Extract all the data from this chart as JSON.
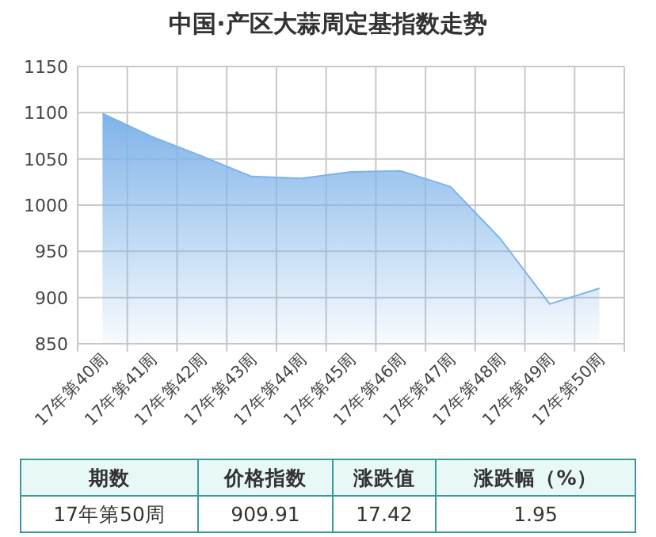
{
  "chart_data": {
    "type": "area",
    "title": "中国·产区大蒜周定基指数走势",
    "categories": [
      "17年第40周",
      "17年第41周",
      "17年第42周",
      "17年第43周",
      "17年第44周",
      "17年第45周",
      "17年第46周",
      "17年第47周",
      "17年第48周",
      "17年第49周",
      "17年第50周"
    ],
    "values": [
      1099,
      1074,
      1053,
      1031,
      1029,
      1036,
      1037,
      1020,
      964,
      893,
      910
    ],
    "color": "#7eb3e9",
    "ylim": [
      850,
      1150
    ],
    "yticks": [
      850,
      900,
      950,
      1000,
      1050,
      1100,
      1150
    ],
    "grid": true,
    "annotations": [
      "期数",
      "价格指数",
      "涨跌值",
      "涨跌幅（%）",
      "17年第50周",
      "909.91",
      "17.42",
      "1.95"
    ]
  }
}
